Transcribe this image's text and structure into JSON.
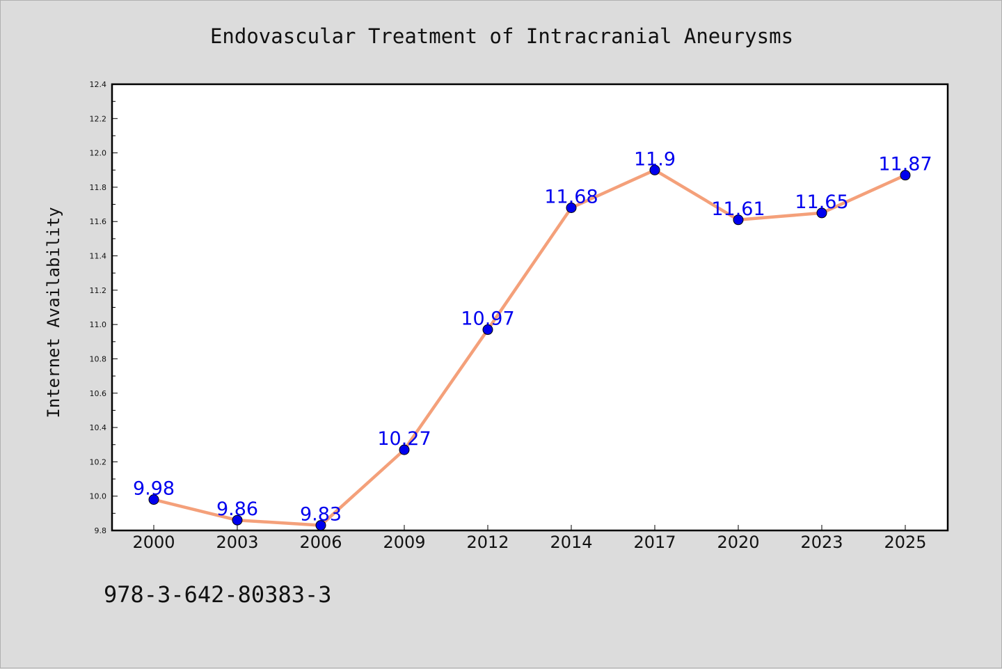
{
  "page": {
    "title": "Endovascular Treatment of Intracranial Aneurysms",
    "isbn": "978-3-642-80383-3"
  },
  "chart_data": {
    "type": "line",
    "title": "Endovascular Treatment of Intracranial Aneurysms",
    "xlabel": "",
    "ylabel": "Internet Availability",
    "categories": [
      "2000",
      "2003",
      "2006",
      "2009",
      "2012",
      "2014",
      "2017",
      "2020",
      "2023",
      "2025"
    ],
    "series": [
      {
        "values": [
          9.98,
          9.86,
          9.83,
          10.27,
          10.97,
          11.68,
          11.9,
          11.61,
          11.65,
          11.87
        ]
      }
    ],
    "data_labels": [
      "9.98",
      "9.86",
      "9.83",
      "10.27",
      "10.97",
      "11.68",
      "11.9",
      "11.61",
      "11.65",
      "11.87"
    ],
    "ylim": [
      9.8,
      12.4
    ],
    "yticks": [
      "9.8",
      "10.0",
      "10.2",
      "10.4",
      "10.6",
      "10.8",
      "11.0",
      "11.2",
      "11.4",
      "11.6",
      "11.8",
      "12.0",
      "12.2",
      "12.4"
    ],
    "grid": false,
    "legend": "none",
    "colors": {
      "line": "#f4a07a",
      "marker": "#0000ee",
      "label": "#0000ee"
    }
  }
}
